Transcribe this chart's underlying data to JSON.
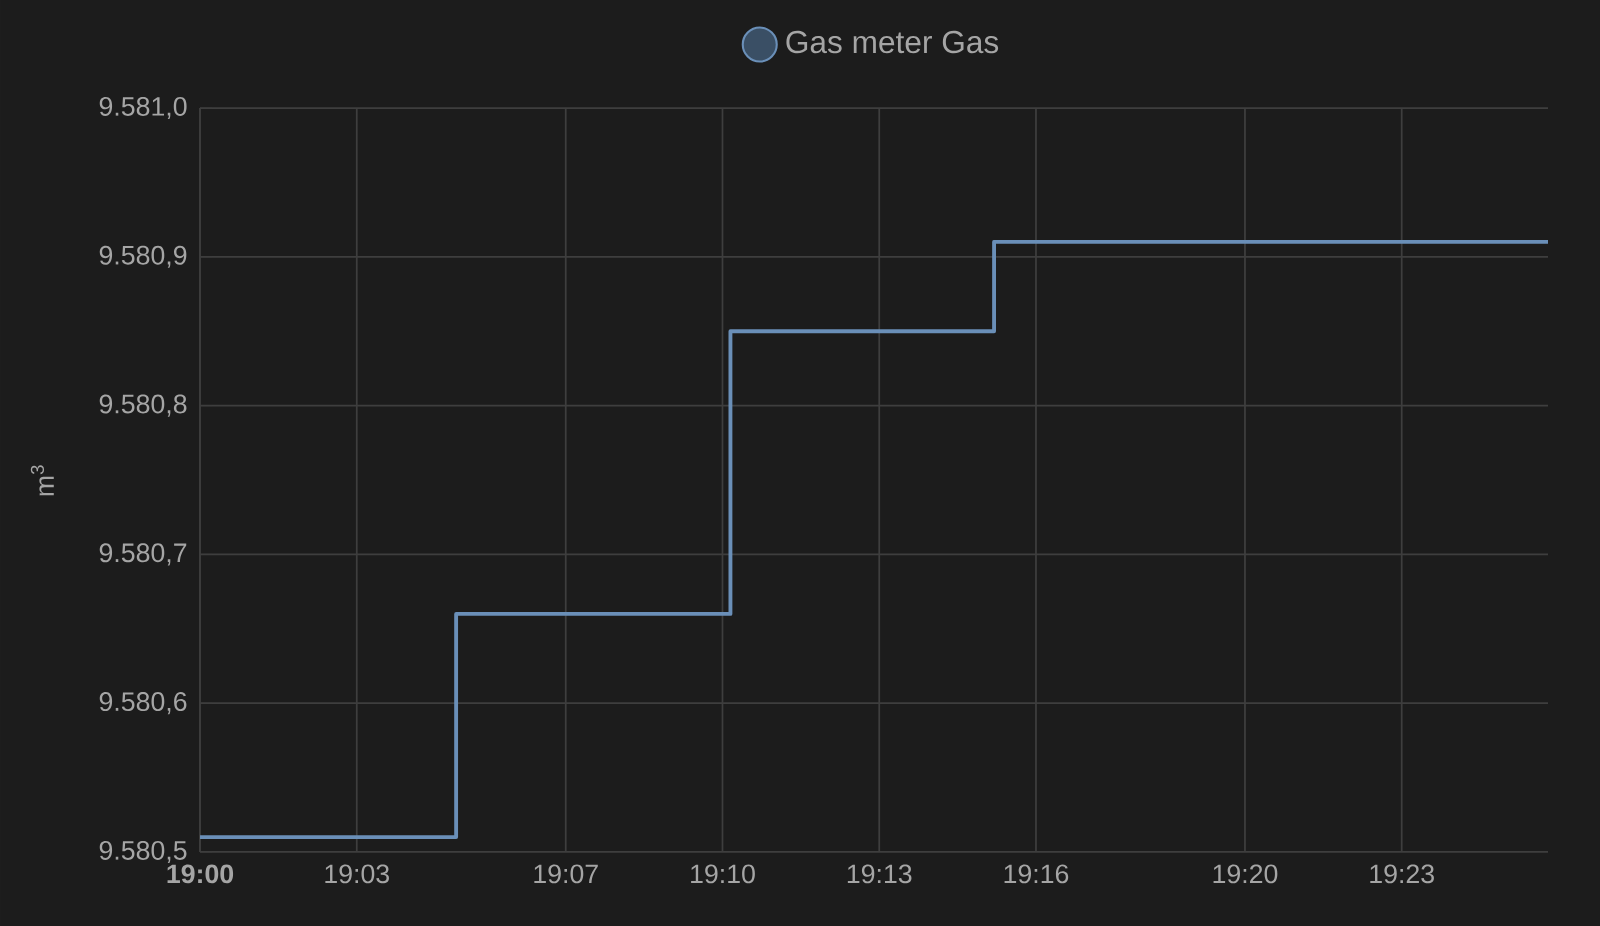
{
  "chart_data": {
    "type": "step",
    "x": [
      19.0,
      19.0817,
      19.1692,
      19.2533,
      19.43
    ],
    "series": [
      {
        "name": "Gas meter Gas",
        "color": "#6a8fb8",
        "values": [
          9580.51,
          9580.66,
          9580.85,
          9580.91,
          9580.91
        ]
      }
    ],
    "ylabel": "m$^{3}$",
    "xlim": [
      19.0,
      19.43
    ],
    "xticks": [
      {
        "value": 19.0,
        "label": "**19:00**"
      },
      {
        "value": 19.05,
        "label": "19:03"
      },
      {
        "value": 19.116667,
        "label": "19:07"
      },
      {
        "value": 19.166667,
        "label": "19:10"
      },
      {
        "value": 19.216667,
        "label": "19:13"
      },
      {
        "value": 19.266667,
        "label": "19:16"
      },
      {
        "value": 19.333333,
        "label": "19:20"
      },
      {
        "value": 19.383333,
        "label": "19:23"
      }
    ],
    "ylim": [
      9580.5,
      9581.0
    ],
    "yticks": [
      {
        "value": 9580.5,
        "label": "9.580,5"
      },
      {
        "value": 9580.6,
        "label": "9.580,6"
      },
      {
        "value": 9580.7,
        "label": "9.580,7"
      },
      {
        "value": 9580.8,
        "label": "9.580,8"
      },
      {
        "value": 9580.9,
        "label": "9.580,9"
      },
      {
        "value": 9581.0,
        "label": "9.581,0"
      }
    ],
    "grid": true,
    "legend": "top"
  }
}
